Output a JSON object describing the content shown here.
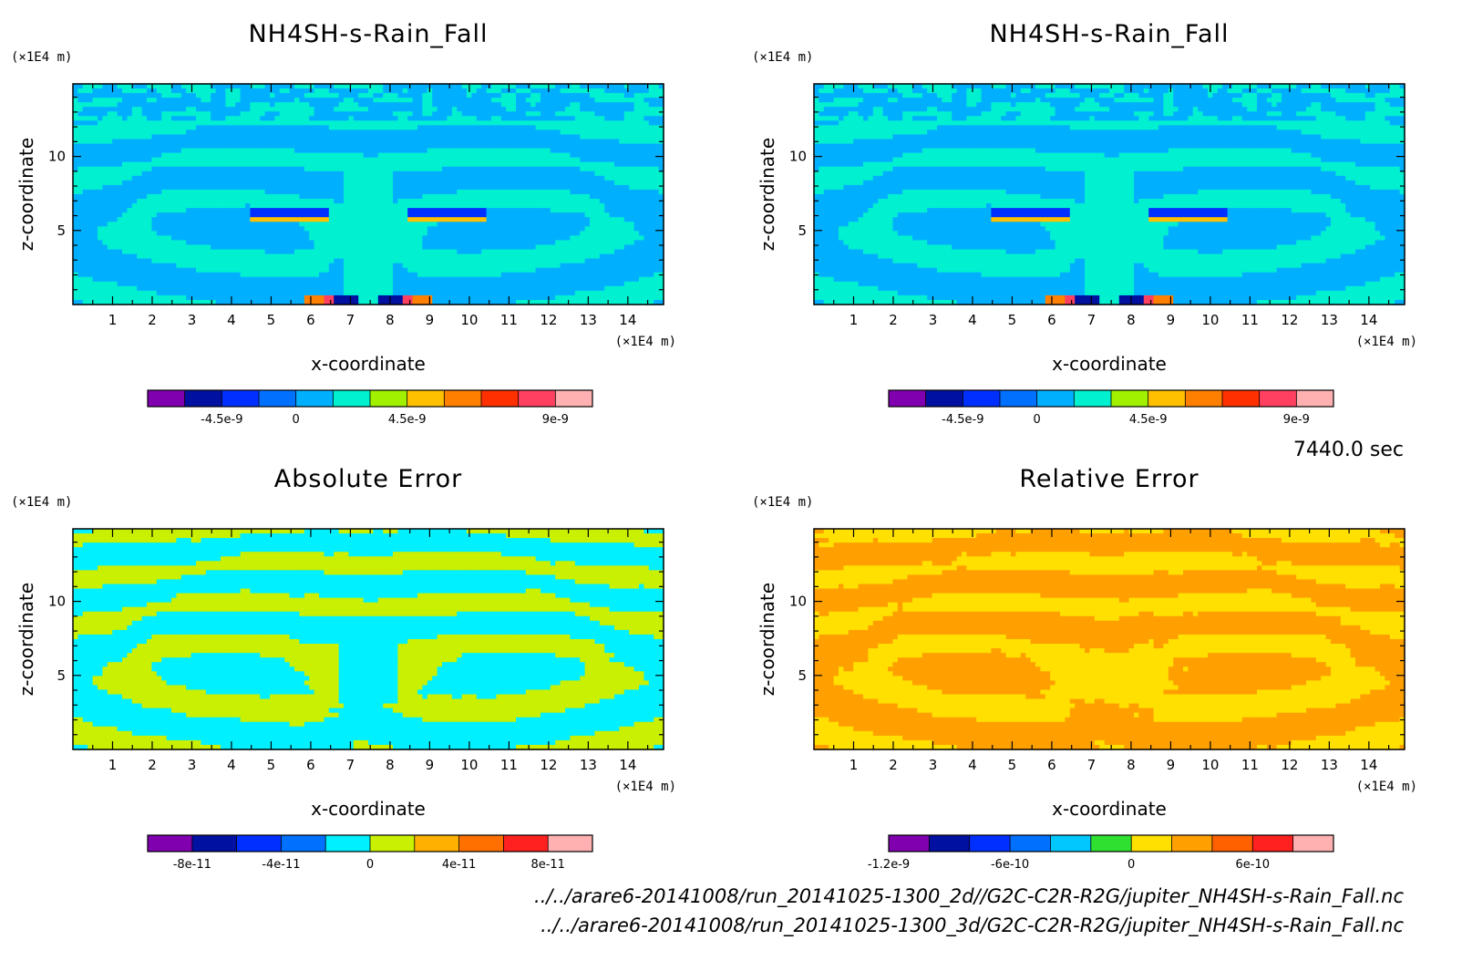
{
  "time_label": "7440.0 sec",
  "file_paths": [
    "../../arare6-20141008/run_20141025-1300_2d//G2C-C2R-R2G/jupiter_NH4SH-s-Rain_Fall.nc",
    "../../arare6-20141008/run_20141025-1300_3d/G2C-C2R-R2G/jupiter_NH4SH-s-Rain_Fall.nc"
  ],
  "chart_data": [
    {
      "type": "heatmap",
      "title": "NH4SH-s-Rain_Fall",
      "xlabel": "x-coordinate",
      "ylabel": "z-coordinate",
      "x_unit": "(×1E4 m)",
      "z_unit": "(×1E4 m)",
      "xlim": [
        0,
        14.9
      ],
      "ylim": [
        0,
        14.9
      ],
      "x_ticks": [
        1,
        2,
        3,
        4,
        5,
        6,
        7,
        8,
        9,
        10,
        11,
        12,
        13,
        14
      ],
      "y_ticks": [
        5,
        10
      ],
      "colorbar": {
        "colors": [
          "#8000b0",
          "#0010a0",
          "#0030ff",
          "#0070ff",
          "#00b0ff",
          "#00f0d0",
          "#a0f000",
          "#ffc000",
          "#ff8000",
          "#ff3000",
          "#ff4060",
          "#ffb0b0"
        ],
        "tick_labels": [
          "-4.5e-9",
          "0",
          "4.5e-9",
          "9e-9"
        ],
        "tick_index": [
          2,
          4,
          7,
          11
        ]
      }
    },
    {
      "type": "heatmap",
      "title": "NH4SH-s-Rain_Fall",
      "xlabel": "x-coordinate",
      "ylabel": "z-coordinate",
      "x_unit": "(×1E4 m)",
      "z_unit": "(×1E4 m)",
      "xlim": [
        0,
        14.9
      ],
      "ylim": [
        0,
        14.9
      ],
      "x_ticks": [
        1,
        2,
        3,
        4,
        5,
        6,
        7,
        8,
        9,
        10,
        11,
        12,
        13,
        14
      ],
      "y_ticks": [
        5,
        10
      ],
      "colorbar": {
        "colors": [
          "#8000b0",
          "#0010a0",
          "#0030ff",
          "#0070ff",
          "#00b0ff",
          "#00f0d0",
          "#a0f000",
          "#ffc000",
          "#ff8000",
          "#ff3000",
          "#ff4060",
          "#ffb0b0"
        ],
        "tick_labels": [
          "-4.5e-9",
          "0",
          "4.5e-9",
          "9e-9"
        ],
        "tick_index": [
          2,
          4,
          7,
          11
        ]
      }
    },
    {
      "type": "heatmap",
      "title": "Absolute Error",
      "xlabel": "x-coordinate",
      "ylabel": "z-coordinate",
      "x_unit": "(×1E4 m)",
      "z_unit": "(×1E4 m)",
      "xlim": [
        0,
        14.9
      ],
      "ylim": [
        0,
        14.9
      ],
      "x_ticks": [
        1,
        2,
        3,
        4,
        5,
        6,
        7,
        8,
        9,
        10,
        11,
        12,
        13,
        14
      ],
      "y_ticks": [
        5,
        10
      ],
      "colorbar": {
        "colors": [
          "#8000b0",
          "#0010a0",
          "#0030ff",
          "#0070ff",
          "#00f0ff",
          "#c8f000",
          "#ffb000",
          "#ff7000",
          "#ff2020",
          "#ffb0b0"
        ],
        "tick_labels": [
          "-8e-11",
          "-4e-11",
          "0",
          "4e-11",
          "8e-11"
        ],
        "tick_index": [
          1,
          3,
          5,
          7,
          9
        ]
      }
    },
    {
      "type": "heatmap",
      "title": "Relative Error",
      "xlabel": "x-coordinate",
      "ylabel": "z-coordinate",
      "x_unit": "(×1E4 m)",
      "z_unit": "(×1E4 m)",
      "xlim": [
        0,
        14.9
      ],
      "ylim": [
        0,
        14.9
      ],
      "x_ticks": [
        1,
        2,
        3,
        4,
        5,
        6,
        7,
        8,
        9,
        10,
        11,
        12,
        13,
        14
      ],
      "y_ticks": [
        5,
        10
      ],
      "colorbar": {
        "colors": [
          "#8000b0",
          "#0010a0",
          "#0030ff",
          "#0070ff",
          "#00c8ff",
          "#30e030",
          "#ffe000",
          "#ffa000",
          "#ff6000",
          "#ff2020",
          "#ffb0b0"
        ],
        "tick_labels": [
          "-1.2e-9",
          "-6e-10",
          "0",
          "6e-10"
        ],
        "tick_index": [
          0,
          3,
          6,
          9
        ]
      }
    }
  ]
}
